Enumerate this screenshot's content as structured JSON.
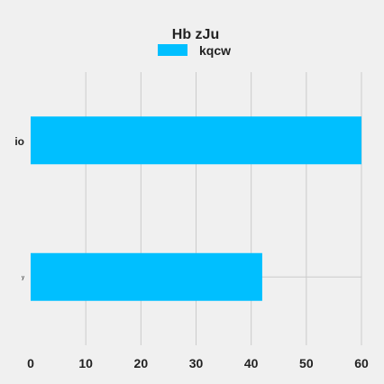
{
  "chart_data": {
    "type": "bar",
    "orientation": "horizontal",
    "title": "Hb zJu",
    "categories": [
      "io",
      "y"
    ],
    "series": [
      {
        "name": "kqcw",
        "values": [
          60,
          42
        ]
      }
    ],
    "xlabel": "",
    "ylabel": "",
    "xlim": [
      0,
      60
    ],
    "xticks": [
      0,
      10,
      20,
      30,
      40,
      50,
      60
    ],
    "grid": true,
    "legend": "top-center",
    "colors": {
      "bar": "#00bfff",
      "background": "#f0f0f0",
      "grid": "#cbcbcb",
      "text": "#222222"
    },
    "reference_line": {
      "category": "y",
      "value": 60
    }
  }
}
